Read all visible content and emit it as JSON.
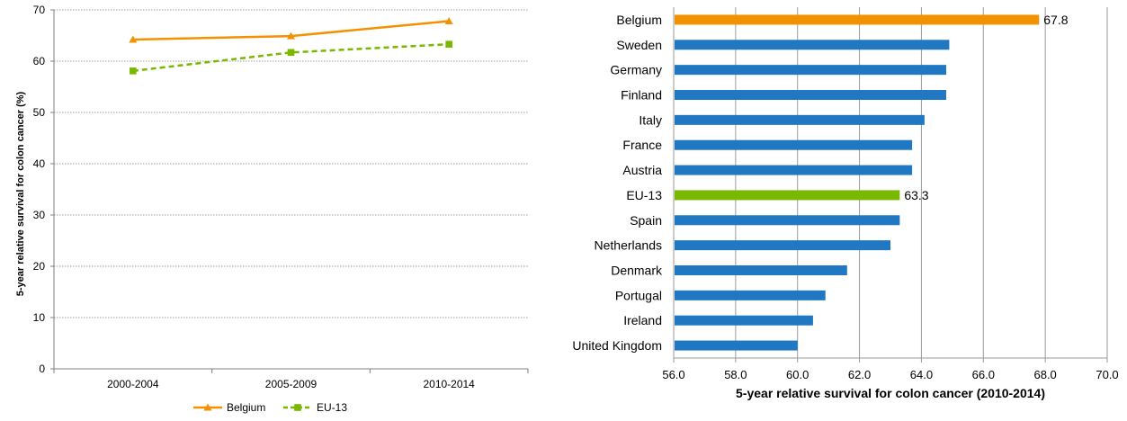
{
  "chart_data": [
    {
      "type": "line",
      "title": "",
      "xlabel": "",
      "ylabel": "5-year relative survival for colon cancer (%)",
      "categories": [
        "2000-2004",
        "2005-2009",
        "2010-2014"
      ],
      "ylim": [
        0,
        70
      ],
      "yticks": [
        "0",
        "10",
        "20",
        "30",
        "40",
        "50",
        "60",
        "70"
      ],
      "grid": "horizontal",
      "legend_position": "bottom",
      "series": [
        {
          "name": "Belgium",
          "values": [
            64.2,
            64.9,
            67.8
          ],
          "color": "#F39200",
          "style": "solid",
          "marker": "triangle"
        },
        {
          "name": "EU-13",
          "values": [
            58.1,
            61.7,
            63.3
          ],
          "color": "#7AB800",
          "style": "dashed",
          "marker": "square"
        }
      ]
    },
    {
      "type": "bar",
      "orientation": "horizontal",
      "title": "",
      "xlabel": "5-year relative survival for colon cancer (2010-2014)",
      "ylabel": "",
      "xlim": [
        56,
        70
      ],
      "xticks": [
        "56.0",
        "58.0",
        "60.0",
        "62.0",
        "64.0",
        "66.0",
        "68.0",
        "70.0"
      ],
      "grid": "vertical",
      "categories": [
        "Belgium",
        "Sweden",
        "Germany",
        "Finland",
        "Italy",
        "France",
        "Austria",
        "EU-13",
        "Spain",
        "Netherlands",
        "Denmark",
        "Portugal",
        "Ireland",
        "United Kingdom"
      ],
      "values": [
        67.8,
        64.9,
        64.8,
        64.8,
        64.1,
        63.7,
        63.7,
        63.3,
        63.3,
        63.0,
        61.6,
        60.9,
        60.5,
        60.0
      ],
      "bar_colors": [
        "#F39200",
        "#1F78C1",
        "#1F78C1",
        "#1F78C1",
        "#1F78C1",
        "#1F78C1",
        "#1F78C1",
        "#7AB800",
        "#1F78C1",
        "#1F78C1",
        "#1F78C1",
        "#1F78C1",
        "#1F78C1",
        "#1F78C1"
      ],
      "data_labels": [
        {
          "category": "Belgium",
          "text": "67.8"
        },
        {
          "category": "EU-13",
          "text": "63.3"
        }
      ]
    }
  ]
}
